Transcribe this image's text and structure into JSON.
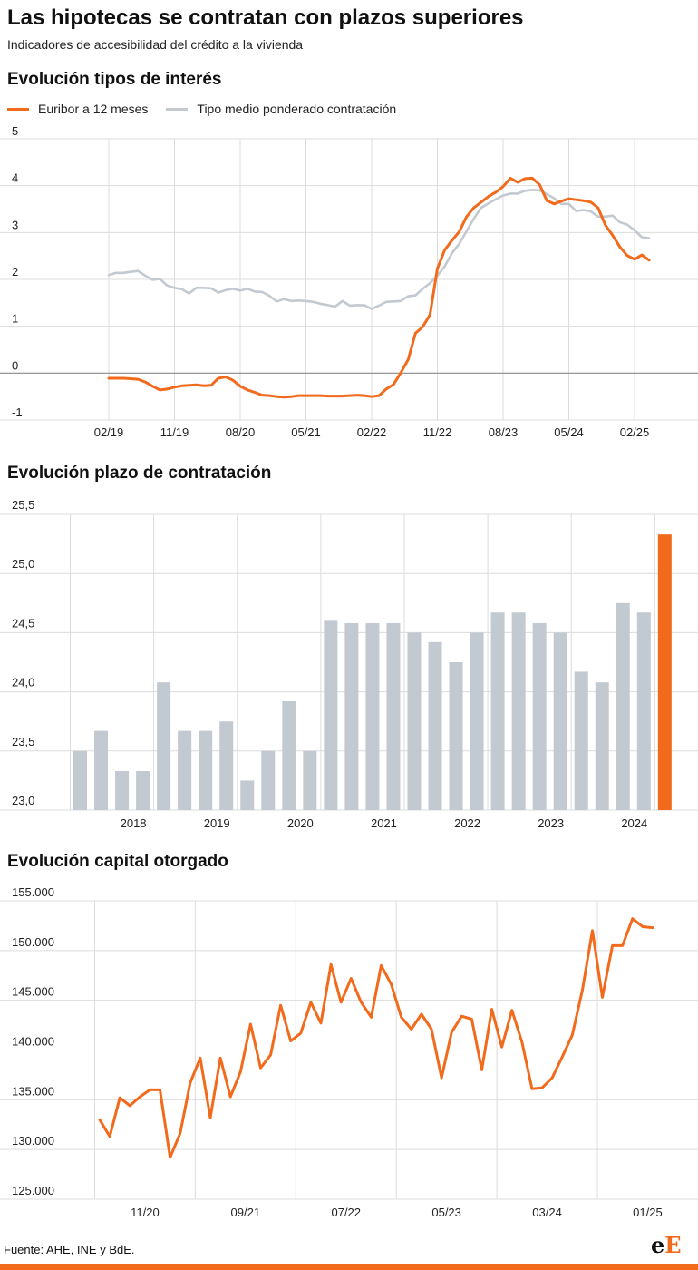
{
  "header": {
    "title": "Las hipotecas se contratan con plazos superiores",
    "subtitle": "Indicadores de accesibilidad del crédito a la vivienda"
  },
  "colors": {
    "orange": "#f26b1d",
    "grey": "#c3c9d0",
    "grid": "#dcdcdc",
    "zero": "#888888"
  },
  "charts": {
    "rates": {
      "title": "Evolución tipos de interés",
      "legend": [
        {
          "label": "Euribor a 12 meses",
          "color": "#f26b1d"
        },
        {
          "label": "Tipo medio ponderado contratación",
          "color": "#c3c9d0"
        }
      ]
    },
    "term": {
      "title": "Evolución plazo de contratación"
    },
    "capital": {
      "title": "Evolución capital otorgado"
    }
  },
  "chart_data": [
    {
      "type": "line",
      "title": "Evolución tipos de interés",
      "ylim": [
        -1,
        5
      ],
      "yticks": [
        5,
        4,
        3,
        2,
        1,
        0,
        -1
      ],
      "xlim": [
        0,
        74
      ],
      "xticks": [
        {
          "i": 0,
          "label": "02/19"
        },
        {
          "i": 9,
          "label": "11/19"
        },
        {
          "i": 18,
          "label": "08/20"
        },
        {
          "i": 27,
          "label": "05/21"
        },
        {
          "i": 36,
          "label": "02/22"
        },
        {
          "i": 45,
          "label": "11/22"
        },
        {
          "i": 54,
          "label": "08/23"
        },
        {
          "i": 63,
          "label": "05/24"
        },
        {
          "i": 72,
          "label": "02/25"
        }
      ],
      "series": [
        {
          "name": "Euribor a 12 meses",
          "color": "#f26b1d",
          "values": [
            -0.11,
            -0.11,
            -0.11,
            -0.12,
            -0.13,
            -0.19,
            -0.28,
            -0.36,
            -0.34,
            -0.3,
            -0.27,
            -0.26,
            -0.25,
            -0.27,
            -0.26,
            -0.11,
            -0.08,
            -0.15,
            -0.28,
            -0.36,
            -0.41,
            -0.47,
            -0.48,
            -0.5,
            -0.51,
            -0.5,
            -0.48,
            -0.48,
            -0.48,
            -0.48,
            -0.49,
            -0.49,
            -0.49,
            -0.48,
            -0.47,
            -0.48,
            -0.5,
            -0.48,
            -0.34,
            -0.24,
            0.01,
            0.29,
            0.85,
            0.99,
            1.25,
            2.23,
            2.63,
            2.83,
            3.02,
            3.34,
            3.53,
            3.65,
            3.77,
            3.86,
            3.98,
            4.16,
            4.07,
            4.15,
            4.16,
            4.02,
            3.68,
            3.61,
            3.67,
            3.72,
            3.7,
            3.68,
            3.65,
            3.53,
            3.16,
            2.94,
            2.69,
            2.51,
            2.43,
            2.52,
            2.41
          ]
        },
        {
          "name": "Tipo medio ponderado contratación",
          "color": "#c3c9d0",
          "values": [
            2.09,
            2.14,
            2.14,
            2.16,
            2.18,
            2.08,
            1.99,
            2.01,
            1.87,
            1.82,
            1.79,
            1.7,
            1.82,
            1.82,
            1.81,
            1.72,
            1.77,
            1.8,
            1.76,
            1.8,
            1.74,
            1.73,
            1.65,
            1.53,
            1.58,
            1.54,
            1.55,
            1.54,
            1.52,
            1.48,
            1.45,
            1.42,
            1.54,
            1.44,
            1.45,
            1.45,
            1.37,
            1.44,
            1.52,
            1.53,
            1.54,
            1.64,
            1.66,
            1.8,
            1.92,
            2.08,
            2.28,
            2.56,
            2.76,
            3.03,
            3.3,
            3.53,
            3.62,
            3.71,
            3.79,
            3.83,
            3.83,
            3.89,
            3.91,
            3.9,
            3.82,
            3.73,
            3.61,
            3.61,
            3.46,
            3.48,
            3.45,
            3.34,
            3.34,
            3.36,
            3.22,
            3.17,
            3.05,
            2.9,
            2.88
          ]
        }
      ]
    },
    {
      "type": "bar",
      "title": "Evolución plazo de contratación",
      "ylim": [
        23.0,
        25.5
      ],
      "yticks": [
        "25,5",
        "25,0",
        "24,5",
        "24,0",
        "23,5",
        "23,0"
      ],
      "xticks": [
        {
          "i": 3,
          "label": "2018"
        },
        {
          "i": 7,
          "label": "2019"
        },
        {
          "i": 11,
          "label": "2020"
        },
        {
          "i": 15,
          "label": "2021"
        },
        {
          "i": 19,
          "label": "2022"
        },
        {
          "i": 23,
          "label": "2023"
        },
        {
          "i": 27,
          "label": "2024"
        }
      ],
      "values": [
        23.5,
        23.67,
        23.33,
        23.33,
        24.08,
        23.67,
        23.67,
        23.75,
        23.25,
        23.5,
        23.92,
        23.5,
        24.6,
        24.58,
        24.58,
        24.58,
        24.5,
        24.42,
        24.25,
        24.5,
        24.67,
        24.67,
        24.58,
        24.5,
        24.17,
        24.08,
        24.75,
        24.67,
        25.33
      ],
      "highlight_index": 28,
      "color": "#c3c9d0",
      "highlight_color": "#f26b1d"
    },
    {
      "type": "line",
      "title": "Evolución capital otorgado",
      "ylim": [
        125000,
        155000
      ],
      "yticks": [
        "155.000",
        "150.000",
        "145.000",
        "140.000",
        "135.000",
        "130.000",
        "125.000"
      ],
      "xlim": [
        0,
        57
      ],
      "xticks": [
        {
          "i": 6,
          "label": "11/20"
        },
        {
          "i": 16,
          "label": "09/21"
        },
        {
          "i": 26,
          "label": "07/22"
        },
        {
          "i": 36,
          "label": "05/23"
        },
        {
          "i": 46,
          "label": "03/24"
        },
        {
          "i": 56,
          "label": "01/25"
        }
      ],
      "series": [
        {
          "name": "Capital",
          "color": "#f26b1d",
          "values": [
            133000,
            131300,
            135200,
            134400,
            135300,
            136000,
            136000,
            129200,
            131600,
            136700,
            139200,
            133200,
            139200,
            135300,
            137800,
            142600,
            138200,
            139500,
            144500,
            140900,
            141700,
            144800,
            142700,
            148600,
            144800,
            147200,
            144800,
            143300,
            148500,
            146600,
            143300,
            142100,
            143600,
            142100,
            137200,
            141800,
            143400,
            143100,
            138000,
            144100,
            140300,
            144000,
            140800,
            136100,
            136200,
            137200,
            139300,
            141500,
            146000,
            152000,
            145300,
            150500,
            150500,
            153200,
            152400,
            152300
          ]
        }
      ]
    }
  ],
  "footer": {
    "source": "Fuente: AHE, INE y BdE.",
    "logo_e1": "e",
    "logo_e2": "E"
  }
}
